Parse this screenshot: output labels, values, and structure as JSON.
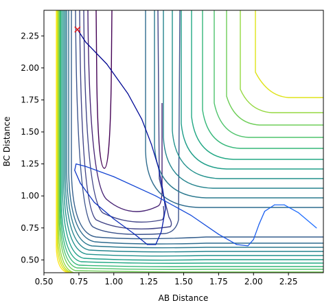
{
  "chart_data": {
    "type": "contour",
    "xlabel": "AB Distance",
    "ylabel": "BC Distance",
    "xlim": [
      0.5,
      2.5
    ],
    "ylim": [
      0.4,
      2.45
    ],
    "grid": false,
    "xticks": [
      "0.50",
      "0.75",
      "1.00",
      "1.25",
      "1.50",
      "1.75",
      "2.00",
      "2.25"
    ],
    "yticks": [
      "0.50",
      "0.75",
      "1.00",
      "1.25",
      "1.50",
      "1.75",
      "2.00",
      "2.25"
    ],
    "colormap": "viridis",
    "contour_colors": [
      "#440154",
      "#482475",
      "#414487",
      "#355f8d",
      "#2a788e",
      "#21918c",
      "#22a884",
      "#44bf70",
      "#7ad151",
      "#bddf26",
      "#fde725"
    ],
    "start_marker": {
      "x": 0.74,
      "y": 2.3,
      "symbol": "x",
      "color": "#e41a1c"
    },
    "series": [
      {
        "color": "#00008b",
        "points": [
          [
            0.74,
            2.3
          ],
          [
            0.8,
            2.2
          ],
          [
            0.95,
            2.03
          ],
          [
            1.1,
            1.8
          ],
          [
            1.2,
            1.6
          ],
          [
            1.27,
            1.4
          ],
          [
            1.32,
            1.22
          ],
          [
            1.35,
            1.05
          ],
          [
            1.37,
            0.9
          ],
          [
            1.34,
            0.72
          ],
          [
            1.3,
            0.62
          ],
          [
            1.24,
            0.62
          ],
          [
            1.15,
            0.7
          ],
          [
            1.0,
            0.82
          ],
          [
            0.86,
            0.95
          ],
          [
            0.76,
            1.1
          ],
          [
            0.72,
            1.2
          ],
          [
            0.73,
            1.25
          ],
          [
            0.8,
            1.23
          ],
          [
            1.0,
            1.15
          ],
          [
            1.3,
            1.0
          ],
          [
            1.55,
            0.85
          ],
          [
            1.75,
            0.7
          ],
          [
            1.88,
            0.62
          ],
          [
            1.96,
            0.61
          ],
          [
            2.0,
            0.66
          ],
          [
            2.04,
            0.78
          ],
          [
            2.08,
            0.88
          ],
          [
            2.15,
            0.93
          ],
          [
            2.22,
            0.93
          ],
          [
            2.32,
            0.87
          ],
          [
            2.45,
            0.75
          ]
        ]
      }
    ]
  }
}
